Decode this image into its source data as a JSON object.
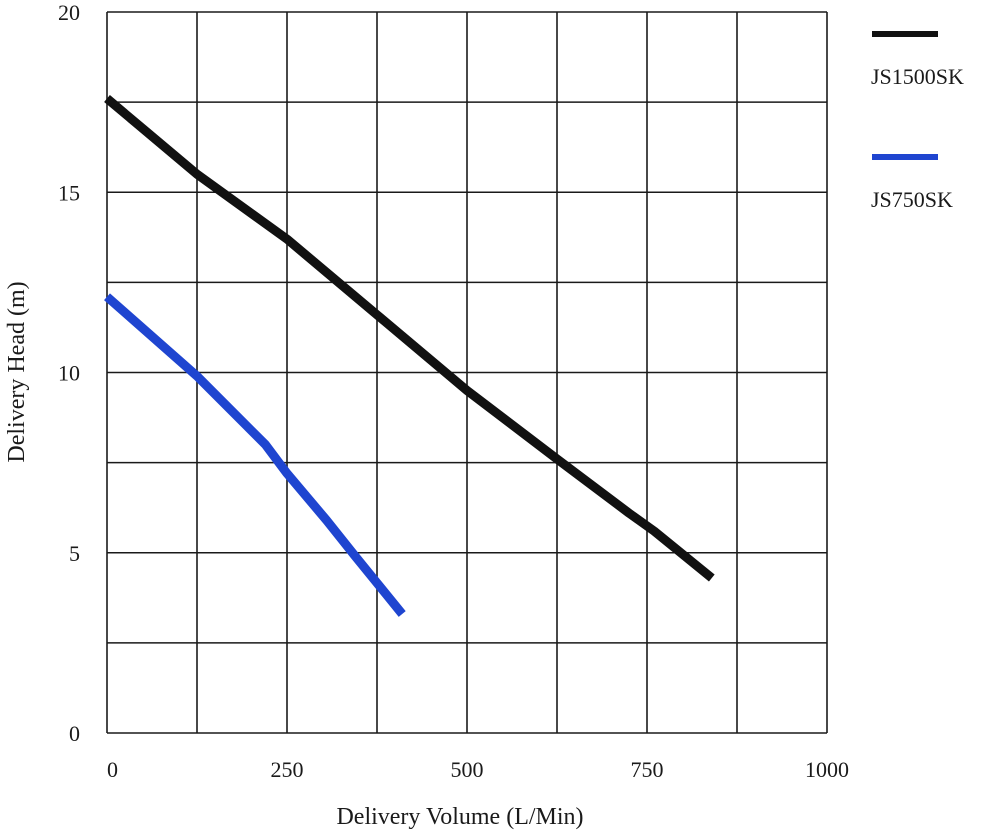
{
  "chart_data": {
    "type": "line",
    "title": "",
    "xlabel": "Delivery Volume (L/Min)",
    "ylabel": "Delivery Head (m)",
    "xlim": [
      0,
      1000
    ],
    "ylim": [
      0,
      20
    ],
    "x_ticks": [
      0,
      250,
      500,
      750,
      1000
    ],
    "x_tick_labels": [
      "0",
      "250",
      "500",
      "750",
      "1000"
    ],
    "y_ticks": [
      0,
      5,
      10,
      15,
      20
    ],
    "y_tick_labels": [
      "0",
      "5",
      "10",
      "15",
      "20"
    ],
    "x_grid_step": 125,
    "y_grid_step": 2.5,
    "grid": true,
    "legend_position": "right",
    "series": [
      {
        "name": "JS1500SK",
        "color": "#111111",
        "points": [
          [
            0,
            17.6
          ],
          [
            125,
            15.5
          ],
          [
            250,
            13.7
          ],
          [
            375,
            11.6
          ],
          [
            500,
            9.5
          ],
          [
            625,
            7.6
          ],
          [
            725,
            6.1
          ],
          [
            760,
            5.6
          ],
          [
            840,
            4.3
          ]
        ]
      },
      {
        "name": "JS750SK",
        "color": "#1f45d0",
        "points": [
          [
            0,
            12.1
          ],
          [
            125,
            9.9
          ],
          [
            220,
            8.0
          ],
          [
            250,
            7.2
          ],
          [
            305,
            5.9
          ],
          [
            345,
            4.9
          ],
          [
            410,
            3.3
          ]
        ]
      }
    ]
  }
}
